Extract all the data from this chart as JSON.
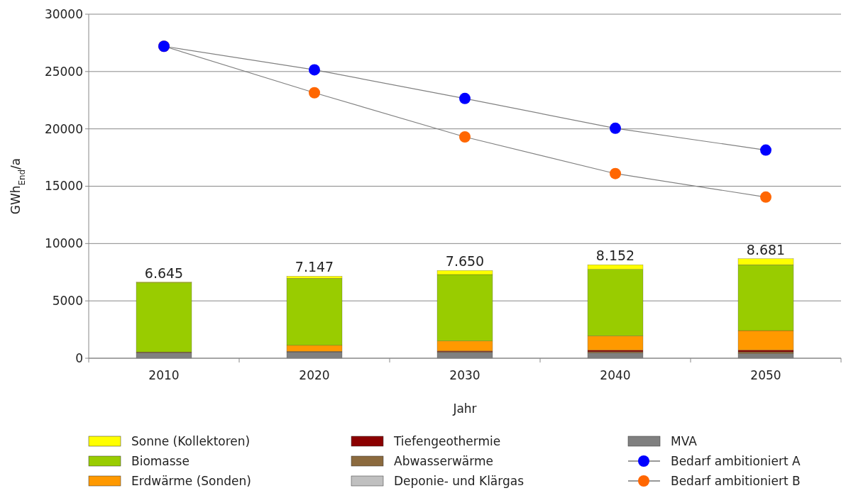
{
  "chart_data": {
    "type": "bar",
    "stacked": true,
    "ylabel": "GWh$_{End}$/a",
    "xlabel": "Jahr",
    "categories": [
      "2010",
      "2020",
      "2030",
      "2040",
      "2050"
    ],
    "series": [
      {
        "name": "MVA",
        "color": "#808080",
        "values": [
          450,
          550,
          500,
          450,
          400
        ]
      },
      {
        "name": "Deponie- und Klärgas",
        "color": "#c0c0c0",
        "values": [
          null,
          null,
          null,
          null,
          null
        ]
      },
      {
        "name": "Abwasserwärme",
        "color": "#8b6a3e",
        "values": [
          100,
          50,
          80,
          120,
          160
        ]
      },
      {
        "name": "Tiefengeothermie",
        "color": "#8b0000",
        "values": [
          0,
          0,
          50,
          130,
          150
        ]
      },
      {
        "name": "Erdwärme (Sonden)",
        "color": "#ff9900",
        "values": [
          0,
          520,
          880,
          1250,
          1700
        ]
      },
      {
        "name": "Biomasse",
        "color": "#99cc00",
        "values": [
          6050,
          5850,
          5790,
          5800,
          5740
        ]
      },
      {
        "name": "Sonne (Kollektoren)",
        "color": "#ffff00",
        "values": [
          45,
          180,
          350,
          400,
          530
        ]
      },
      {
        "name": "Bedarf ambitioniert A",
        "type": "line",
        "color": "#0000ff",
        "values": [
          27200,
          25150,
          22650,
          20050,
          18150
        ]
      },
      {
        "name": "Bedarf ambitioniert B",
        "type": "line",
        "color": "#ff6600",
        "values": [
          27200,
          23150,
          19300,
          16100,
          14050
        ]
      }
    ],
    "totals": [
      "6.645",
      "7.147",
      "7.650",
      "8.152",
      "8.681"
    ],
    "ylim": [
      0,
      30000
    ],
    "yticks": [
      0,
      5000,
      10000,
      15000,
      20000,
      25000,
      30000
    ],
    "grid": "y",
    "legend": "bottom",
    "marker": "circle"
  }
}
